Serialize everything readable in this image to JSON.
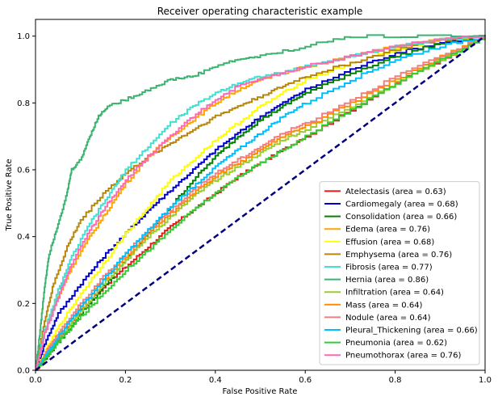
{
  "chart_data": {
    "type": "line",
    "title": "Receiver operating characteristic example",
    "xlabel": "False Positive Rate",
    "ylabel": "True Positive Rate",
    "xlim": [
      0,
      1
    ],
    "ylim": [
      0,
      1.05
    ],
    "xticks": [
      "0.0",
      "0.2",
      "0.4",
      "0.6",
      "0.8",
      "1.0"
    ],
    "yticks": [
      "0.0",
      "0.2",
      "0.4",
      "0.6",
      "0.8",
      "1.0"
    ],
    "grid": false,
    "legend_position": "lower-right",
    "diagonal": {
      "color": "#000080",
      "style": "dashed",
      "points": [
        [
          0,
          0
        ],
        [
          1,
          1
        ]
      ]
    },
    "series": [
      {
        "name": "Atelectasis (area = 0.63)",
        "color": "#e41a1c",
        "points": [
          [
            0,
            0
          ],
          [
            0.03,
            0.06
          ],
          [
            0.06,
            0.11
          ],
          [
            0.1,
            0.18
          ],
          [
            0.15,
            0.25
          ],
          [
            0.2,
            0.31
          ],
          [
            0.25,
            0.37
          ],
          [
            0.3,
            0.43
          ],
          [
            0.35,
            0.48
          ],
          [
            0.4,
            0.53
          ],
          [
            0.45,
            0.58
          ],
          [
            0.5,
            0.62
          ],
          [
            0.55,
            0.66
          ],
          [
            0.6,
            0.7
          ],
          [
            0.7,
            0.78
          ],
          [
            0.8,
            0.86
          ],
          [
            0.9,
            0.93
          ],
          [
            1,
            1
          ]
        ]
      },
      {
        "name": "Cardiomegaly (area = 0.68)",
        "color": "#0000cc",
        "points": [
          [
            0,
            0
          ],
          [
            0.02,
            0.08
          ],
          [
            0.05,
            0.17
          ],
          [
            0.1,
            0.26
          ],
          [
            0.15,
            0.34
          ],
          [
            0.2,
            0.41
          ],
          [
            0.25,
            0.48
          ],
          [
            0.3,
            0.54
          ],
          [
            0.35,
            0.6
          ],
          [
            0.4,
            0.66
          ],
          [
            0.45,
            0.71
          ],
          [
            0.5,
            0.76
          ],
          [
            0.55,
            0.8
          ],
          [
            0.6,
            0.84
          ],
          [
            0.7,
            0.9
          ],
          [
            0.8,
            0.95
          ],
          [
            0.9,
            0.98
          ],
          [
            1,
            1
          ]
        ]
      },
      {
        "name": "Consolidation (area = 0.66)",
        "color": "#008000",
        "points": [
          [
            0,
            0
          ],
          [
            0.03,
            0.05
          ],
          [
            0.06,
            0.1
          ],
          [
            0.1,
            0.17
          ],
          [
            0.15,
            0.25
          ],
          [
            0.2,
            0.33
          ],
          [
            0.25,
            0.41
          ],
          [
            0.3,
            0.49
          ],
          [
            0.35,
            0.57
          ],
          [
            0.4,
            0.64
          ],
          [
            0.45,
            0.7
          ],
          [
            0.5,
            0.75
          ],
          [
            0.55,
            0.79
          ],
          [
            0.6,
            0.83
          ],
          [
            0.7,
            0.89
          ],
          [
            0.8,
            0.94
          ],
          [
            0.9,
            0.98
          ],
          [
            1,
            1
          ]
        ]
      },
      {
        "name": "Edema (area = 0.76)",
        "color": "#ffa500",
        "points": [
          [
            0,
            0
          ],
          [
            0.02,
            0.12
          ],
          [
            0.05,
            0.22
          ],
          [
            0.08,
            0.31
          ],
          [
            0.12,
            0.4
          ],
          [
            0.16,
            0.48
          ],
          [
            0.2,
            0.56
          ],
          [
            0.25,
            0.64
          ],
          [
            0.3,
            0.7
          ],
          [
            0.35,
            0.75
          ],
          [
            0.4,
            0.8
          ],
          [
            0.45,
            0.84
          ],
          [
            0.5,
            0.87
          ],
          [
            0.6,
            0.91
          ],
          [
            0.7,
            0.94
          ],
          [
            0.8,
            0.97
          ],
          [
            0.9,
            0.99
          ],
          [
            1,
            1
          ]
        ]
      },
      {
        "name": "Effusion (area = 0.68)",
        "color": "#ffff00",
        "points": [
          [
            0,
            0
          ],
          [
            0.03,
            0.08
          ],
          [
            0.06,
            0.15
          ],
          [
            0.1,
            0.23
          ],
          [
            0.15,
            0.32
          ],
          [
            0.2,
            0.41
          ],
          [
            0.25,
            0.49
          ],
          [
            0.3,
            0.57
          ],
          [
            0.35,
            0.63
          ],
          [
            0.4,
            0.69
          ],
          [
            0.45,
            0.74
          ],
          [
            0.5,
            0.79
          ],
          [
            0.55,
            0.83
          ],
          [
            0.6,
            0.87
          ],
          [
            0.7,
            0.92
          ],
          [
            0.8,
            0.96
          ],
          [
            0.9,
            0.99
          ],
          [
            1,
            1
          ]
        ]
      },
      {
        "name": "Emphysema (area = 0.76)",
        "color": "#b8860b",
        "points": [
          [
            0,
            0
          ],
          [
            0.02,
            0.15
          ],
          [
            0.04,
            0.26
          ],
          [
            0.07,
            0.37
          ],
          [
            0.1,
            0.45
          ],
          [
            0.15,
            0.53
          ],
          [
            0.2,
            0.59
          ],
          [
            0.25,
            0.64
          ],
          [
            0.3,
            0.68
          ],
          [
            0.35,
            0.72
          ],
          [
            0.4,
            0.76
          ],
          [
            0.45,
            0.79
          ],
          [
            0.5,
            0.82
          ],
          [
            0.55,
            0.85
          ],
          [
            0.6,
            0.88
          ],
          [
            0.7,
            0.92
          ],
          [
            0.8,
            0.96
          ],
          [
            0.9,
            0.99
          ],
          [
            1,
            1
          ]
        ]
      },
      {
        "name": "Fibrosis (area = 0.77)",
        "color": "#40e0d0",
        "points": [
          [
            0,
            0
          ],
          [
            0.02,
            0.12
          ],
          [
            0.05,
            0.24
          ],
          [
            0.08,
            0.34
          ],
          [
            0.12,
            0.44
          ],
          [
            0.16,
            0.52
          ],
          [
            0.2,
            0.6
          ],
          [
            0.25,
            0.67
          ],
          [
            0.3,
            0.74
          ],
          [
            0.35,
            0.79
          ],
          [
            0.4,
            0.83
          ],
          [
            0.45,
            0.86
          ],
          [
            0.5,
            0.88
          ],
          [
            0.55,
            0.89
          ],
          [
            0.6,
            0.91
          ],
          [
            0.7,
            0.94
          ],
          [
            0.8,
            0.97
          ],
          [
            0.9,
            0.99
          ],
          [
            1,
            1
          ]
        ]
      },
      {
        "name": "Hernia (area = 0.86)",
        "color": "#3cb371",
        "points": [
          [
            0,
            0
          ],
          [
            0.01,
            0.12
          ],
          [
            0.02,
            0.25
          ],
          [
            0.03,
            0.35
          ],
          [
            0.05,
            0.44
          ],
          [
            0.07,
            0.53
          ],
          [
            0.08,
            0.6
          ],
          [
            0.1,
            0.63
          ],
          [
            0.12,
            0.7
          ],
          [
            0.14,
            0.76
          ],
          [
            0.16,
            0.79
          ],
          [
            0.2,
            0.81
          ],
          [
            0.25,
            0.84
          ],
          [
            0.3,
            0.87
          ],
          [
            0.35,
            0.88
          ],
          [
            0.4,
            0.91
          ],
          [
            0.45,
            0.93
          ],
          [
            0.5,
            0.94
          ],
          [
            0.6,
            0.97
          ],
          [
            0.7,
            1.0
          ],
          [
            1,
            1
          ]
        ]
      },
      {
        "name": "Infiltration (area = 0.64)",
        "color": "#9acd32",
        "points": [
          [
            0,
            0
          ],
          [
            0.03,
            0.06
          ],
          [
            0.06,
            0.11
          ],
          [
            0.1,
            0.18
          ],
          [
            0.15,
            0.26
          ],
          [
            0.2,
            0.33
          ],
          [
            0.25,
            0.4
          ],
          [
            0.3,
            0.46
          ],
          [
            0.35,
            0.52
          ],
          [
            0.4,
            0.57
          ],
          [
            0.45,
            0.61
          ],
          [
            0.5,
            0.65
          ],
          [
            0.55,
            0.69
          ],
          [
            0.6,
            0.72
          ],
          [
            0.7,
            0.79
          ],
          [
            0.8,
            0.86
          ],
          [
            0.9,
            0.93
          ],
          [
            1,
            1
          ]
        ]
      },
      {
        "name": "Mass (area = 0.64)",
        "color": "#ff8c00",
        "points": [
          [
            0,
            0
          ],
          [
            0.03,
            0.07
          ],
          [
            0.06,
            0.12
          ],
          [
            0.1,
            0.19
          ],
          [
            0.15,
            0.27
          ],
          [
            0.2,
            0.34
          ],
          [
            0.25,
            0.41
          ],
          [
            0.3,
            0.47
          ],
          [
            0.35,
            0.53
          ],
          [
            0.4,
            0.58
          ],
          [
            0.45,
            0.62
          ],
          [
            0.5,
            0.66
          ],
          [
            0.55,
            0.7
          ],
          [
            0.6,
            0.73
          ],
          [
            0.7,
            0.8
          ],
          [
            0.8,
            0.87
          ],
          [
            0.9,
            0.94
          ],
          [
            1,
            1
          ]
        ]
      },
      {
        "name": "Nodule (area = 0.64)",
        "color": "#f08080",
        "points": [
          [
            0,
            0
          ],
          [
            0.03,
            0.07
          ],
          [
            0.06,
            0.13
          ],
          [
            0.1,
            0.2
          ],
          [
            0.15,
            0.28
          ],
          [
            0.2,
            0.35
          ],
          [
            0.25,
            0.42
          ],
          [
            0.3,
            0.48
          ],
          [
            0.35,
            0.54
          ],
          [
            0.4,
            0.59
          ],
          [
            0.45,
            0.63
          ],
          [
            0.5,
            0.67
          ],
          [
            0.55,
            0.71
          ],
          [
            0.6,
            0.74
          ],
          [
            0.7,
            0.81
          ],
          [
            0.8,
            0.88
          ],
          [
            0.9,
            0.94
          ],
          [
            1,
            1
          ]
        ]
      },
      {
        "name": "Pleural_Thickening (area = 0.66)",
        "color": "#00bfff",
        "points": [
          [
            0,
            0
          ],
          [
            0.03,
            0.06
          ],
          [
            0.06,
            0.12
          ],
          [
            0.1,
            0.19
          ],
          [
            0.15,
            0.27
          ],
          [
            0.2,
            0.35
          ],
          [
            0.25,
            0.42
          ],
          [
            0.3,
            0.49
          ],
          [
            0.35,
            0.55
          ],
          [
            0.4,
            0.61
          ],
          [
            0.45,
            0.66
          ],
          [
            0.5,
            0.71
          ],
          [
            0.55,
            0.76
          ],
          [
            0.6,
            0.8
          ],
          [
            0.7,
            0.87
          ],
          [
            0.8,
            0.93
          ],
          [
            0.9,
            0.97
          ],
          [
            1,
            1
          ]
        ]
      },
      {
        "name": "Pneumonia (area = 0.62)",
        "color": "#32cd32",
        "points": [
          [
            0,
            0
          ],
          [
            0.03,
            0.05
          ],
          [
            0.06,
            0.1
          ],
          [
            0.1,
            0.16
          ],
          [
            0.15,
            0.23
          ],
          [
            0.2,
            0.3
          ],
          [
            0.25,
            0.36
          ],
          [
            0.3,
            0.42
          ],
          [
            0.35,
            0.48
          ],
          [
            0.4,
            0.53
          ],
          [
            0.45,
            0.58
          ],
          [
            0.5,
            0.62
          ],
          [
            0.55,
            0.66
          ],
          [
            0.6,
            0.7
          ],
          [
            0.7,
            0.78
          ],
          [
            0.8,
            0.86
          ],
          [
            0.9,
            0.93
          ],
          [
            1,
            1
          ]
        ]
      },
      {
        "name": "Pneumothorax (area = 0.76)",
        "color": "#ff69b4",
        "points": [
          [
            0,
            0
          ],
          [
            0.02,
            0.11
          ],
          [
            0.05,
            0.22
          ],
          [
            0.08,
            0.32
          ],
          [
            0.12,
            0.42
          ],
          [
            0.16,
            0.5
          ],
          [
            0.2,
            0.57
          ],
          [
            0.25,
            0.64
          ],
          [
            0.3,
            0.7
          ],
          [
            0.35,
            0.76
          ],
          [
            0.4,
            0.81
          ],
          [
            0.45,
            0.85
          ],
          [
            0.5,
            0.87
          ],
          [
            0.55,
            0.89
          ],
          [
            0.6,
            0.91
          ],
          [
            0.7,
            0.94
          ],
          [
            0.8,
            0.97
          ],
          [
            0.9,
            0.99
          ],
          [
            1,
            1
          ]
        ]
      }
    ]
  }
}
